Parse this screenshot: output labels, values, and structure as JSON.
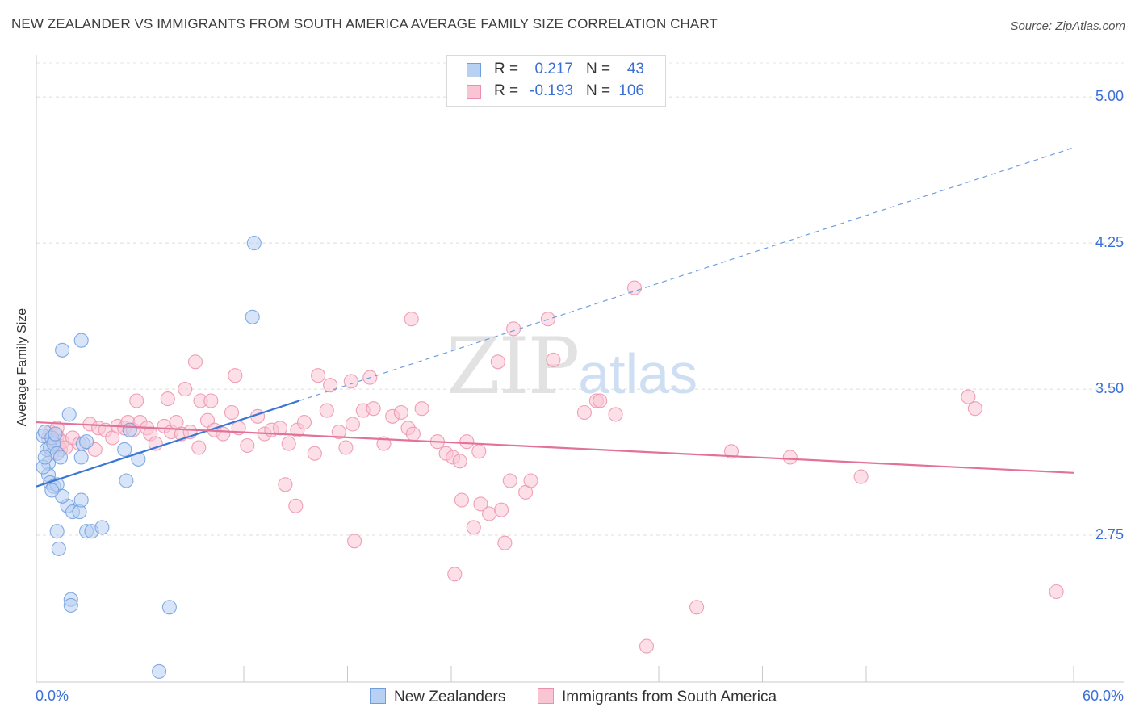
{
  "title": "NEW ZEALANDER VS IMMIGRANTS FROM SOUTH AMERICA AVERAGE FAMILY SIZE CORRELATION CHART",
  "source": "Source: ZipAtlas.com",
  "watermark": {
    "zip": "ZIP",
    "atlas": "atlas"
  },
  "stats": {
    "r_label": "R =",
    "n_label": "N =",
    "rows": [
      {
        "r": "0.217",
        "n": "43",
        "fill": "#b8d0f2",
        "stroke": "#6f9de0"
      },
      {
        "r": "-0.193",
        "n": "106",
        "fill": "#f9c5d4",
        "stroke": "#ec90ad"
      }
    ]
  },
  "legend": [
    {
      "label": "New Zealanders",
      "fill": "#b8d0f2",
      "stroke": "#6f9de0"
    },
    {
      "label": "Immigrants from South America",
      "fill": "#f9c5d4",
      "stroke": "#ec90ad"
    }
  ],
  "chart_data": {
    "type": "scatter",
    "title": "NEW ZEALANDER VS IMMIGRANTS FROM SOUTH AMERICA AVERAGE FAMILY SIZE CORRELATION CHART",
    "xlabel": "",
    "ylabel": "Average Family Size",
    "xlim": [
      0,
      60
    ],
    "ylim": [
      2.0,
      5.1
    ],
    "x_tick_labels": [
      "0.0%",
      "60.0%"
    ],
    "y_ticks": [
      2.75,
      3.5,
      4.25,
      5.0
    ],
    "y_tick_labels": [
      "2.75",
      "3.50",
      "4.25",
      "5.00"
    ],
    "series": [
      {
        "name": "New Zealanders",
        "color": "#6f9de0",
        "fill": "#b8d0f2",
        "trend": {
          "x0": 0,
          "y0": 3.0,
          "x1": 15.2,
          "y1": 3.44,
          "x_dashed_end": 60,
          "y_dashed_end": 4.74
        },
        "points": [
          [
            0.4,
            3.26
          ],
          [
            0.5,
            3.28
          ],
          [
            0.6,
            3.19
          ],
          [
            0.7,
            3.12
          ],
          [
            0.7,
            3.06
          ],
          [
            0.8,
            3.2
          ],
          [
            0.9,
            3.25
          ],
          [
            1.0,
            3.22
          ],
          [
            1.1,
            3.27
          ],
          [
            1.2,
            3.17
          ],
          [
            0.4,
            3.1
          ],
          [
            0.5,
            3.15
          ],
          [
            0.8,
            3.02
          ],
          [
            1.0,
            3.0
          ],
          [
            1.2,
            3.01
          ],
          [
            1.4,
            3.15
          ],
          [
            1.5,
            3.7
          ],
          [
            1.9,
            3.37
          ],
          [
            2.6,
            3.75
          ],
          [
            2.7,
            3.22
          ],
          [
            2.9,
            3.23
          ],
          [
            2.6,
            3.15
          ],
          [
            1.8,
            2.9
          ],
          [
            2.1,
            2.87
          ],
          [
            2.5,
            2.87
          ],
          [
            2.6,
            2.93
          ],
          [
            1.2,
            2.77
          ],
          [
            1.3,
            2.68
          ],
          [
            2.9,
            2.77
          ],
          [
            3.2,
            2.77
          ],
          [
            3.8,
            2.79
          ],
          [
            2.0,
            2.42
          ],
          [
            2.0,
            2.39
          ],
          [
            7.7,
            2.38
          ],
          [
            5.1,
            3.19
          ],
          [
            5.2,
            3.03
          ],
          [
            5.9,
            3.14
          ],
          [
            5.4,
            3.29
          ],
          [
            12.6,
            4.25
          ],
          [
            12.5,
            3.87
          ],
          [
            7.1,
            2.05
          ],
          [
            1.5,
            2.95
          ],
          [
            0.9,
            2.98
          ]
        ]
      },
      {
        "name": "Immigrants from South America",
        "color": "#ec90ad",
        "fill": "#f9c5d4",
        "trend": {
          "x0": 0,
          "y0": 3.33,
          "x1": 60,
          "y1": 3.07
        },
        "points": [
          [
            0.7,
            3.25
          ],
          [
            0.8,
            3.28
          ],
          [
            1.0,
            3.23
          ],
          [
            1.1,
            3.22
          ],
          [
            1.2,
            3.26
          ],
          [
            1.3,
            3.21
          ],
          [
            1.4,
            3.19
          ],
          [
            1.5,
            3.23
          ],
          [
            1.7,
            3.2
          ],
          [
            0.9,
            3.17
          ],
          [
            1.2,
            3.3
          ],
          [
            2.1,
            3.25
          ],
          [
            2.5,
            3.22
          ],
          [
            3.1,
            3.32
          ],
          [
            3.4,
            3.19
          ],
          [
            3.6,
            3.3
          ],
          [
            4.0,
            3.29
          ],
          [
            4.4,
            3.25
          ],
          [
            4.7,
            3.31
          ],
          [
            5.1,
            3.3
          ],
          [
            5.3,
            3.33
          ],
          [
            5.6,
            3.29
          ],
          [
            6.0,
            3.33
          ],
          [
            6.4,
            3.3
          ],
          [
            6.6,
            3.27
          ],
          [
            6.9,
            3.22
          ],
          [
            7.4,
            3.31
          ],
          [
            7.8,
            3.28
          ],
          [
            8.1,
            3.33
          ],
          [
            8.4,
            3.27
          ],
          [
            8.9,
            3.28
          ],
          [
            9.4,
            3.2
          ],
          [
            9.9,
            3.34
          ],
          [
            10.3,
            3.29
          ],
          [
            10.8,
            3.27
          ],
          [
            11.3,
            3.38
          ],
          [
            11.7,
            3.3
          ],
          [
            12.2,
            3.21
          ],
          [
            12.8,
            3.36
          ],
          [
            13.2,
            3.27
          ],
          [
            13.6,
            3.29
          ],
          [
            14.1,
            3.3
          ],
          [
            14.6,
            3.22
          ],
          [
            15.1,
            3.29
          ],
          [
            15.5,
            3.33
          ],
          [
            16.1,
            3.17
          ],
          [
            16.8,
            3.39
          ],
          [
            17.5,
            3.28
          ],
          [
            17.9,
            3.2
          ],
          [
            18.3,
            3.32
          ],
          [
            18.9,
            3.39
          ],
          [
            19.5,
            3.4
          ],
          [
            20.1,
            3.22
          ],
          [
            20.6,
            3.36
          ],
          [
            21.1,
            3.38
          ],
          [
            21.5,
            3.3
          ],
          [
            21.8,
            3.27
          ],
          [
            22.3,
            3.4
          ],
          [
            23.2,
            3.23
          ],
          [
            23.7,
            3.17
          ],
          [
            24.1,
            3.15
          ],
          [
            24.5,
            3.13
          ],
          [
            24.9,
            3.23
          ],
          [
            25.6,
            3.18
          ],
          [
            9.5,
            3.44
          ],
          [
            8.6,
            3.5
          ],
          [
            10.1,
            3.44
          ],
          [
            11.5,
            3.57
          ],
          [
            16.3,
            3.57
          ],
          [
            17.0,
            3.52
          ],
          [
            18.2,
            3.54
          ],
          [
            19.3,
            3.56
          ],
          [
            7.6,
            3.45
          ],
          [
            5.8,
            3.44
          ],
          [
            9.2,
            3.64
          ],
          [
            24.6,
            2.93
          ],
          [
            25.7,
            2.91
          ],
          [
            26.2,
            2.86
          ],
          [
            26.9,
            2.88
          ],
          [
            27.4,
            3.03
          ],
          [
            28.3,
            2.97
          ],
          [
            28.6,
            3.03
          ],
          [
            25.3,
            2.79
          ],
          [
            27.1,
            2.71
          ],
          [
            24.2,
            2.55
          ],
          [
            21.7,
            3.86
          ],
          [
            27.6,
            3.81
          ],
          [
            26.7,
            3.64
          ],
          [
            29.6,
            3.86
          ],
          [
            29.9,
            3.65
          ],
          [
            32.4,
            3.44
          ],
          [
            32.6,
            3.44
          ],
          [
            31.7,
            3.38
          ],
          [
            33.5,
            3.37
          ],
          [
            34.6,
            4.02
          ],
          [
            38.2,
            2.38
          ],
          [
            35.3,
            2.18
          ],
          [
            40.2,
            3.18
          ],
          [
            43.6,
            3.15
          ],
          [
            47.7,
            3.05
          ],
          [
            53.9,
            3.46
          ],
          [
            54.3,
            3.4
          ],
          [
            59.0,
            2.46
          ],
          [
            18.4,
            2.72
          ],
          [
            14.4,
            3.01
          ],
          [
            15.0,
            2.9
          ]
        ]
      }
    ]
  }
}
